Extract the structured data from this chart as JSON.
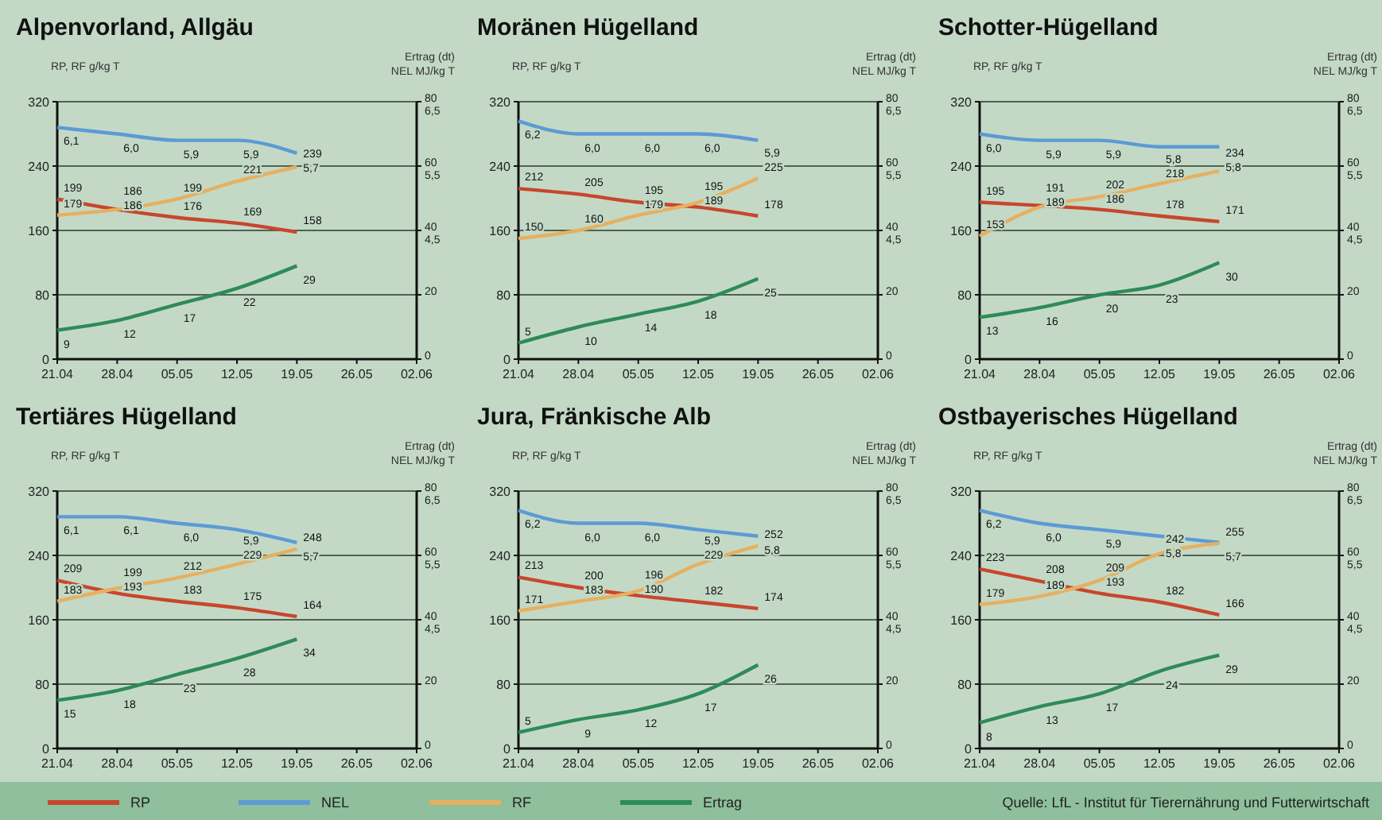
{
  "chart_data": [
    {
      "type": "line",
      "title": "Alpenvorland, Allgäu",
      "ylabel": "RP, RF g/kg T",
      "y2label": "Ertrag (dt)",
      "y3label": "NEL MJ/kg T",
      "categories": [
        "21.04",
        "28.04",
        "05.05",
        "12.05",
        "19.05",
        "26.05",
        "02.06"
      ],
      "ylim": [
        0,
        320
      ],
      "yticks": [
        0,
        80,
        160,
        240,
        320
      ],
      "y2lim": [
        0,
        80
      ],
      "y2ticks": [
        0,
        20,
        40,
        60,
        80
      ],
      "y3lim": [
        2.5,
        6.5
      ],
      "y3ticks": [
        {
          "value": 4.5,
          "label": "4,5"
        },
        {
          "value": 5.5,
          "label": "5,5"
        },
        {
          "value": 6.5,
          "label": "6,5"
        }
      ],
      "grid": "y",
      "legend": "bottom",
      "series": [
        {
          "name": "RP",
          "color": "#c8462c",
          "values": [
            199,
            186,
            176,
            169,
            158,
            null,
            null
          ],
          "value_labels": [
            "199",
            "186",
            "176",
            "169",
            "158",
            null,
            null
          ]
        },
        {
          "name": "NEL",
          "color": "#5b9bd5",
          "axis": "y3",
          "values": [
            6.1,
            6.0,
            5.9,
            5.9,
            5.7,
            null,
            null
          ],
          "value_labels": [
            "6,1",
            "6,0",
            "5,9",
            "5,9",
            "5,7",
            null,
            null
          ]
        },
        {
          "name": "RF",
          "color": "#e6b060",
          "values": [
            179,
            186,
            199,
            221,
            239,
            null,
            null
          ],
          "value_labels": [
            "179",
            "186",
            "199",
            "221",
            "239",
            null,
            null
          ]
        },
        {
          "name": "Ertrag",
          "color": "#2e8b57",
          "axis": "y2",
          "values": [
            9,
            12,
            17,
            22,
            29,
            null,
            null
          ],
          "value_labels": [
            "9",
            "12",
            "17",
            "22",
            "29",
            null,
            null
          ]
        }
      ]
    },
    {
      "type": "line",
      "title": "Moränen Hügelland",
      "ylabel": "RP, RF g/kg T",
      "y2label": "Ertrag (dt)",
      "y3label": "NEL MJ/kg T",
      "categories": [
        "21.04",
        "28.04",
        "05.05",
        "12.05",
        "19.05",
        "26.05",
        "02.06"
      ],
      "ylim": [
        0,
        320
      ],
      "yticks": [
        0,
        80,
        160,
        240,
        320
      ],
      "y2lim": [
        0,
        80
      ],
      "y2ticks": [
        0,
        20,
        40,
        60,
        80
      ],
      "y3lim": [
        2.5,
        6.5
      ],
      "y3ticks": [
        {
          "value": 4.5,
          "label": "4,5"
        },
        {
          "value": 5.5,
          "label": "5,5"
        },
        {
          "value": 6.5,
          "label": "6,5"
        }
      ],
      "grid": "y",
      "series": [
        {
          "color": "#c8462c",
          "values": [
            212,
            205,
            195,
            189,
            178,
            null,
            null
          ],
          "value_labels": [
            "212",
            "205",
            "195",
            "189",
            "178",
            null,
            null
          ]
        },
        {
          "color": "#5b9bd5",
          "axis": "y3",
          "values": [
            6.2,
            6.0,
            6.0,
            6.0,
            5.9,
            null,
            null
          ],
          "value_labels": [
            "6,2",
            "6,0",
            "6,0",
            "6,0",
            "5,9",
            null,
            null
          ]
        },
        {
          "color": "#e6b060",
          "values": [
            150,
            160,
            179,
            195,
            225,
            null,
            null
          ],
          "value_labels": [
            "150",
            "160",
            "179",
            "195",
            "225",
            null,
            null
          ]
        },
        {
          "color": "#2e8b57",
          "axis": "y2",
          "values": [
            5,
            10,
            14,
            18,
            25,
            null,
            null
          ],
          "value_labels": [
            "5",
            "10",
            "14",
            "18",
            "25",
            null,
            null
          ]
        }
      ]
    },
    {
      "type": "line",
      "title": "Schotter-Hügelland",
      "ylabel": "RP, RF g/kg T",
      "y2label": "Ertrag (dt)",
      "y3label": "NEL MJ/kg T",
      "categories": [
        "21.04",
        "28.04",
        "05.05",
        "12.05",
        "19.05",
        "26.05",
        "02.06"
      ],
      "ylim": [
        0,
        320
      ],
      "yticks": [
        0,
        80,
        160,
        240,
        320
      ],
      "y2lim": [
        0,
        80
      ],
      "y2ticks": [
        0,
        20,
        40,
        60,
        80
      ],
      "y3lim": [
        2.5,
        6.5
      ],
      "y3ticks": [
        {
          "value": 4.5,
          "label": "4,5"
        },
        {
          "value": 5.5,
          "label": "5,5"
        },
        {
          "value": 6.5,
          "label": "6,5"
        }
      ],
      "grid": "y",
      "series": [
        {
          "color": "#c8462c",
          "values": [
            195,
            191,
            186,
            178,
            171,
            null,
            null
          ],
          "value_labels": [
            "195",
            "191",
            "186",
            "178",
            "171",
            null,
            null
          ]
        },
        {
          "color": "#5b9bd5",
          "axis": "y3",
          "values": [
            6.0,
            5.9,
            5.9,
            5.8,
            5.8,
            null,
            null
          ],
          "value_labels": [
            "6,0",
            "5,9",
            "5,9",
            "5,8",
            "5,8",
            null,
            null
          ]
        },
        {
          "color": "#e6b060",
          "values": [
            153,
            189,
            202,
            218,
            234,
            null,
            null
          ],
          "value_labels": [
            "153",
            "189",
            "202",
            "218",
            "234",
            null,
            null
          ]
        },
        {
          "color": "#2e8b57",
          "axis": "y2",
          "values": [
            13,
            16,
            20,
            23,
            30,
            null,
            null
          ],
          "value_labels": [
            "13",
            "16",
            "20",
            "23",
            "30",
            null,
            null
          ]
        }
      ]
    },
    {
      "type": "line",
      "title": "Tertiäres Hügelland",
      "ylabel": "RP, RF g/kg T",
      "y2label": "Ertrag (dt)",
      "y3label": "NEL MJ/kg T",
      "categories": [
        "21.04",
        "28.04",
        "05.05",
        "12.05",
        "19.05",
        "26.05",
        "02.06"
      ],
      "ylim": [
        0,
        320
      ],
      "yticks": [
        0,
        80,
        160,
        240,
        320
      ],
      "y2lim": [
        0,
        80
      ],
      "y2ticks": [
        0,
        20,
        40,
        60,
        80
      ],
      "y3lim": [
        2.5,
        6.5
      ],
      "y3ticks": [
        {
          "value": 4.5,
          "label": "4,5"
        },
        {
          "value": 5.5,
          "label": "5,5"
        },
        {
          "value": 6.5,
          "label": "6,5"
        }
      ],
      "grid": "y",
      "series": [
        {
          "color": "#c8462c",
          "values": [
            209,
            193,
            183,
            175,
            164,
            null,
            null
          ],
          "value_labels": [
            "209",
            "193",
            "183",
            "175",
            "164",
            null,
            null
          ]
        },
        {
          "color": "#5b9bd5",
          "axis": "y3",
          "values": [
            6.1,
            6.1,
            6.0,
            5.9,
            5.7,
            null,
            null
          ],
          "value_labels": [
            "6,1",
            "6,1",
            "6,0",
            "5,9",
            "5,7",
            null,
            null
          ]
        },
        {
          "color": "#e6b060",
          "values": [
            183,
            199,
            212,
            229,
            248,
            null,
            null
          ],
          "value_labels": [
            "183",
            "199",
            "212",
            "229",
            "248",
            null,
            null
          ]
        },
        {
          "color": "#2e8b57",
          "axis": "y2",
          "values": [
            15,
            18,
            23,
            28,
            34,
            null,
            null
          ],
          "value_labels": [
            "15",
            "18",
            "23",
            "28",
            "34",
            null,
            null
          ]
        }
      ]
    },
    {
      "type": "line",
      "title": "Jura, Fränkische Alb",
      "ylabel": "RP, RF g/kg T",
      "y2label": "Ertrag (dt)",
      "y3label": "NEL MJ/kg T",
      "categories": [
        "21.04",
        "28.04",
        "05.05",
        "12.05",
        "19.05",
        "26.05",
        "02.06"
      ],
      "ylim": [
        0,
        320
      ],
      "yticks": [
        0,
        80,
        160,
        240,
        320
      ],
      "y2lim": [
        0,
        80
      ],
      "y2ticks": [
        0,
        20,
        40,
        60,
        80
      ],
      "y3lim": [
        2.5,
        6.5
      ],
      "y3ticks": [
        {
          "value": 4.5,
          "label": "4,5"
        },
        {
          "value": 5.5,
          "label": "5,5"
        },
        {
          "value": 6.5,
          "label": "6,5"
        }
      ],
      "grid": "y",
      "series": [
        {
          "color": "#c8462c",
          "values": [
            213,
            200,
            190,
            182,
            174,
            null,
            null
          ],
          "value_labels": [
            "213",
            "200",
            "190",
            "182",
            "174",
            null,
            null
          ]
        },
        {
          "color": "#5b9bd5",
          "axis": "y3",
          "values": [
            6.2,
            6.0,
            6.0,
            5.9,
            5.8,
            null,
            null
          ],
          "value_labels": [
            "6,2",
            "6,0",
            "6,0",
            "5,9",
            "5,8",
            null,
            null
          ]
        },
        {
          "color": "#e6b060",
          "values": [
            171,
            183,
            196,
            229,
            252,
            null,
            null
          ],
          "value_labels": [
            "171",
            "183",
            "196",
            "229",
            "252",
            null,
            null
          ]
        },
        {
          "color": "#2e8b57",
          "axis": "y2",
          "values": [
            5,
            9,
            12,
            17,
            26,
            null,
            null
          ],
          "value_labels": [
            "5",
            "9",
            "12",
            "17",
            "26",
            null,
            null
          ]
        }
      ]
    },
    {
      "type": "line",
      "title": "Ostbayerisches Hügelland",
      "ylabel": "RP, RF g/kg T",
      "y2label": "Ertrag (dt)",
      "y3label": "NEL MJ/kg T",
      "categories": [
        "21.04",
        "28.04",
        "05.05",
        "12.05",
        "19.05",
        "26.05",
        "02.06"
      ],
      "ylim": [
        0,
        320
      ],
      "yticks": [
        0,
        80,
        160,
        240,
        320
      ],
      "y2lim": [
        0,
        80
      ],
      "y2ticks": [
        0,
        20,
        40,
        60,
        80
      ],
      "y3lim": [
        2.5,
        6.5
      ],
      "y3ticks": [
        {
          "value": 4.5,
          "label": "4,5"
        },
        {
          "value": 5.5,
          "label": "5,5"
        },
        {
          "value": 6.5,
          "label": "6,5"
        }
      ],
      "grid": "y",
      "annotations": [
        "Quelle: LfL - Institut für Tierernährung und Futterwirtschaft"
      ],
      "series": [
        {
          "color": "#c8462c",
          "values": [
            223,
            208,
            193,
            182,
            166,
            null,
            null
          ],
          "value_labels": [
            "223",
            "208",
            "193",
            "182",
            "166",
            null,
            null
          ]
        },
        {
          "color": "#5b9bd5",
          "axis": "y3",
          "values": [
            6.2,
            6.0,
            5.9,
            5.8,
            5.7,
            null,
            null
          ],
          "value_labels": [
            "6,2",
            "6,0",
            "5,9",
            "5,8",
            "5,7",
            null,
            null
          ]
        },
        {
          "color": "#e6b060",
          "values": [
            179,
            189,
            209,
            242,
            255,
            null,
            null
          ],
          "value_labels": [
            "179",
            "189",
            "209",
            "242",
            "255",
            null,
            null
          ]
        },
        {
          "color": "#2e8b57",
          "axis": "y2",
          "values": [
            8,
            13,
            17,
            24,
            29,
            null,
            null
          ],
          "value_labels": [
            "8",
            "13",
            "17",
            "24",
            "29",
            null,
            null
          ]
        }
      ]
    }
  ]
}
